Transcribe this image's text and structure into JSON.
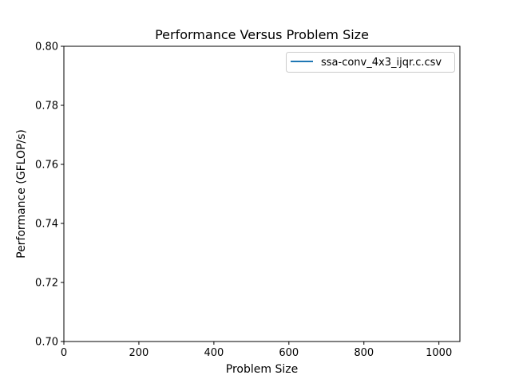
{
  "chart_data": {
    "type": "line",
    "title": "Performance Versus Problem Size",
    "xlabel": "Problem Size",
    "ylabel": "Performance (GFLOP/s)",
    "xlim": [
      0,
      1056
    ],
    "ylim": [
      0.7,
      0.8
    ],
    "xticks": [
      0,
      200,
      400,
      600,
      800,
      1000
    ],
    "xtick_labels": [
      "0",
      "200",
      "400",
      "600",
      "800",
      "1000"
    ],
    "yticks": [
      0.7,
      0.72,
      0.74,
      0.76,
      0.78,
      0.8
    ],
    "ytick_labels": [
      "0.70",
      "0.72",
      "0.74",
      "0.76",
      "0.78",
      "0.80"
    ],
    "grid": false,
    "legend_position": "upper right",
    "series": [
      {
        "name": "ssa-conv_4x3_ijqr.c.csv",
        "color": "#1f77b4",
        "x": [],
        "y": []
      }
    ]
  }
}
